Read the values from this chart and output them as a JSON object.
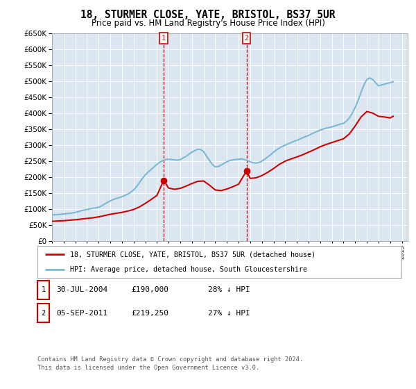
{
  "title": "18, STURMER CLOSE, YATE, BRISTOL, BS37 5UR",
  "subtitle": "Price paid vs. HM Land Registry's House Price Index (HPI)",
  "ylim": [
    0,
    650000
  ],
  "yticks": [
    0,
    50000,
    100000,
    150000,
    200000,
    250000,
    300000,
    350000,
    400000,
    450000,
    500000,
    550000,
    600000,
    650000
  ],
  "xlim_left": 1995.0,
  "xlim_right": 2025.5,
  "bg_color": "#dce6f0",
  "red_line_color": "#cc0000",
  "blue_line_color": "#7ab8d4",
  "marker1_x": 2004.58,
  "marker1_y": 190000,
  "marker2_x": 2011.68,
  "marker2_y": 219250,
  "vline1_x": 2004.58,
  "vline2_x": 2011.68,
  "legend_label_red": "18, STURMER CLOSE, YATE, BRISTOL, BS37 5UR (detached house)",
  "legend_label_blue": "HPI: Average price, detached house, South Gloucestershire",
  "table_entries": [
    {
      "num": "1",
      "date": "30-JUL-2004",
      "price": "£190,000",
      "hpi": "28% ↓ HPI"
    },
    {
      "num": "2",
      "date": "05-SEP-2011",
      "price": "£219,250",
      "hpi": "27% ↓ HPI"
    }
  ],
  "footnote1": "Contains HM Land Registry data © Crown copyright and database right 2024.",
  "footnote2": "This data is licensed under the Open Government Licence v3.0.",
  "hpi_years": [
    1995.0,
    1995.25,
    1995.5,
    1995.75,
    1996.0,
    1996.25,
    1996.5,
    1996.75,
    1997.0,
    1997.25,
    1997.5,
    1997.75,
    1998.0,
    1998.25,
    1998.5,
    1998.75,
    1999.0,
    1999.25,
    1999.5,
    1999.75,
    2000.0,
    2000.25,
    2000.5,
    2000.75,
    2001.0,
    2001.25,
    2001.5,
    2001.75,
    2002.0,
    2002.25,
    2002.5,
    2002.75,
    2003.0,
    2003.25,
    2003.5,
    2003.75,
    2004.0,
    2004.25,
    2004.5,
    2004.75,
    2005.0,
    2005.25,
    2005.5,
    2005.75,
    2006.0,
    2006.25,
    2006.5,
    2006.75,
    2007.0,
    2007.25,
    2007.5,
    2007.75,
    2008.0,
    2008.25,
    2008.5,
    2008.75,
    2009.0,
    2009.25,
    2009.5,
    2009.75,
    2010.0,
    2010.25,
    2010.5,
    2010.75,
    2011.0,
    2011.25,
    2011.5,
    2011.75,
    2012.0,
    2012.25,
    2012.5,
    2012.75,
    2013.0,
    2013.25,
    2013.5,
    2013.75,
    2014.0,
    2014.25,
    2014.5,
    2014.75,
    2015.0,
    2015.25,
    2015.5,
    2015.75,
    2016.0,
    2016.25,
    2016.5,
    2016.75,
    2017.0,
    2017.25,
    2017.5,
    2017.75,
    2018.0,
    2018.25,
    2018.5,
    2018.75,
    2019.0,
    2019.25,
    2019.5,
    2019.75,
    2020.0,
    2020.25,
    2020.5,
    2020.75,
    2021.0,
    2021.25,
    2021.5,
    2021.75,
    2022.0,
    2022.25,
    2022.5,
    2022.75,
    2023.0,
    2023.25,
    2023.5,
    2023.75,
    2024.0,
    2024.25
  ],
  "hpi_values": [
    82000,
    82500,
    83000,
    84000,
    85000,
    86000,
    87000,
    88000,
    90000,
    92000,
    95000,
    97000,
    99000,
    101000,
    103000,
    104000,
    106000,
    110000,
    116000,
    121000,
    126000,
    130000,
    133000,
    136000,
    139000,
    143000,
    147000,
    153000,
    160000,
    170000,
    183000,
    196000,
    207000,
    216000,
    224000,
    232000,
    240000,
    247000,
    252000,
    255000,
    256000,
    255000,
    254000,
    253000,
    255000,
    260000,
    265000,
    272000,
    278000,
    283000,
    287000,
    286000,
    280000,
    266000,
    252000,
    240000,
    232000,
    233000,
    238000,
    243000,
    248000,
    252000,
    254000,
    255000,
    256000,
    257000,
    255000,
    252000,
    248000,
    245000,
    244000,
    246000,
    250000,
    256000,
    263000,
    270000,
    278000,
    285000,
    291000,
    296000,
    300000,
    304000,
    308000,
    312000,
    315000,
    319000,
    323000,
    327000,
    330000,
    335000,
    339000,
    343000,
    347000,
    350000,
    353000,
    355000,
    357000,
    360000,
    363000,
    366000,
    368000,
    375000,
    385000,
    400000,
    418000,
    440000,
    465000,
    488000,
    505000,
    510000,
    505000,
    495000,
    485000,
    488000,
    490000,
    493000,
    495000,
    498000
  ],
  "red_years": [
    1995.0,
    1995.5,
    1996.0,
    1996.5,
    1997.0,
    1997.5,
    1998.0,
    1998.5,
    1999.0,
    1999.5,
    2000.0,
    2000.5,
    2001.0,
    2001.5,
    2002.0,
    2002.5,
    2003.0,
    2003.5,
    2004.0,
    2004.58,
    2005.0,
    2005.5,
    2006.0,
    2006.5,
    2007.0,
    2007.5,
    2008.0,
    2008.5,
    2009.0,
    2009.5,
    2010.0,
    2010.5,
    2011.0,
    2011.68,
    2012.0,
    2012.5,
    2013.0,
    2013.5,
    2014.0,
    2014.5,
    2015.0,
    2015.5,
    2016.0,
    2016.5,
    2017.0,
    2017.5,
    2018.0,
    2018.5,
    2019.0,
    2019.5,
    2020.0,
    2020.5,
    2021.0,
    2021.5,
    2022.0,
    2022.5,
    2023.0,
    2023.5,
    2024.0,
    2024.25
  ],
  "red_values": [
    62000,
    63000,
    64000,
    65500,
    67000,
    69000,
    71000,
    73000,
    76000,
    80000,
    84000,
    87000,
    90000,
    94000,
    99000,
    107000,
    118000,
    130000,
    143000,
    190000,
    166000,
    162000,
    165000,
    172000,
    180000,
    187000,
    188000,
    175000,
    160000,
    158000,
    163000,
    170000,
    178000,
    219250,
    196000,
    198000,
    205000,
    215000,
    227000,
    240000,
    250000,
    257000,
    263000,
    270000,
    278000,
    286000,
    295000,
    302000,
    308000,
    314000,
    320000,
    335000,
    360000,
    388000,
    405000,
    400000,
    390000,
    388000,
    385000,
    390000
  ]
}
